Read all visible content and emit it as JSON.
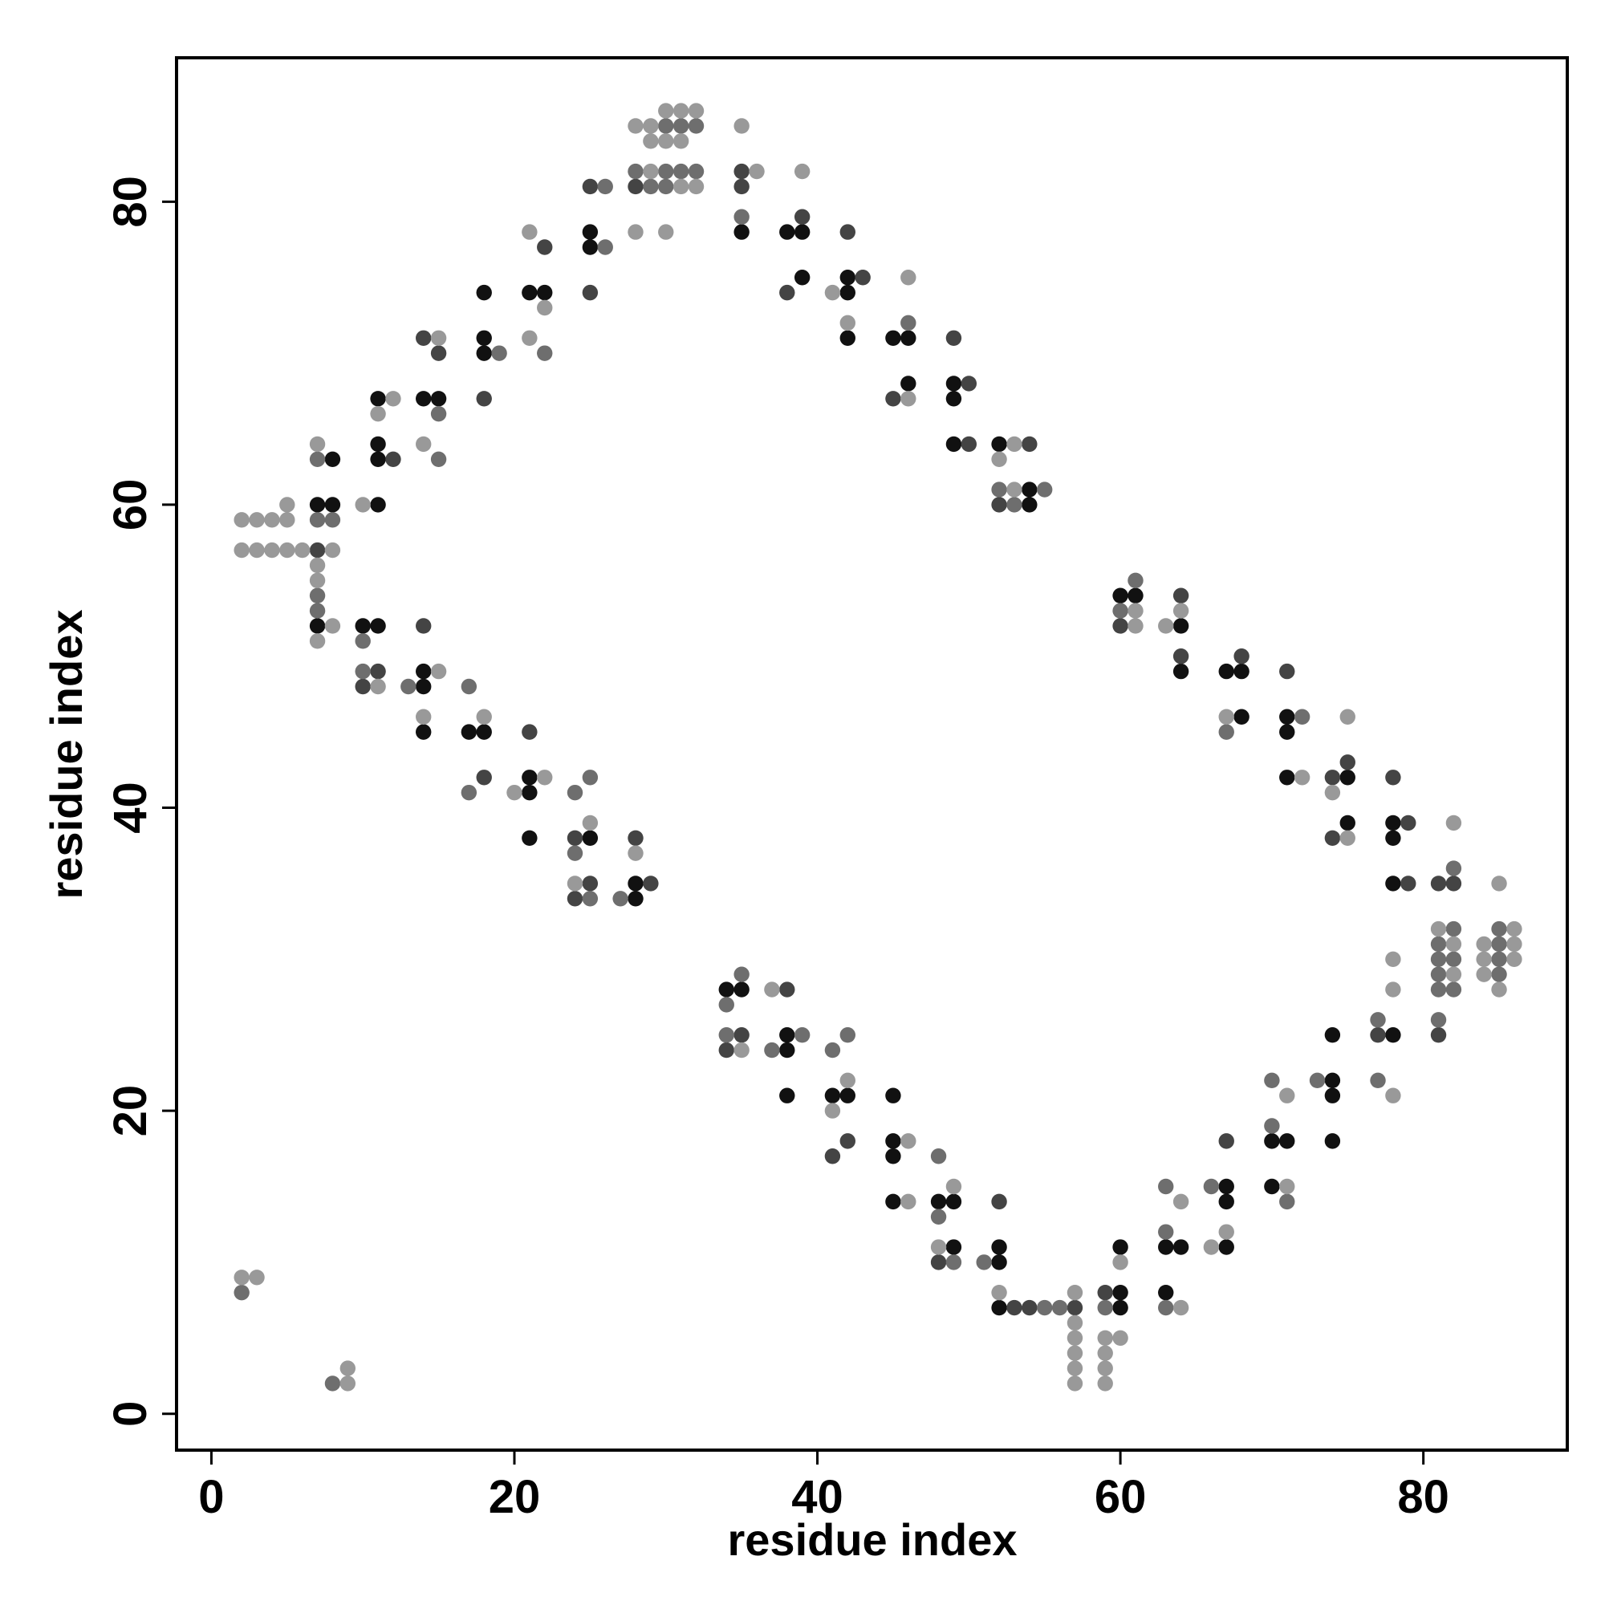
{
  "chart_data": {
    "type": "scatter",
    "xlabel": "residue index",
    "ylabel": "residue index",
    "xlim": [
      -2.3,
      89.5
    ],
    "ylim": [
      -2.4,
      89.5
    ],
    "xticks": [
      0,
      20,
      40,
      60,
      80
    ],
    "yticks": [
      0,
      20,
      40,
      60,
      80
    ],
    "grid": false,
    "series": [
      {
        "color": "#111111",
        "x": [
          7,
          7,
          8,
          8,
          10,
          11,
          11,
          11,
          11,
          11,
          14,
          14,
          14,
          14,
          15,
          17,
          18,
          18,
          18,
          18,
          21,
          21,
          21,
          21,
          22,
          25,
          25,
          25,
          28,
          28,
          34,
          35,
          35,
          38,
          38,
          38,
          38,
          39,
          39,
          41,
          42,
          42,
          42,
          42,
          45,
          45,
          45,
          45,
          45,
          46,
          46,
          48,
          49,
          49,
          49,
          49,
          49,
          52,
          52,
          52,
          52,
          54,
          54,
          60,
          60,
          60,
          60,
          61,
          63,
          63,
          64,
          64,
          64,
          67,
          67,
          67,
          67,
          68,
          68,
          70,
          70,
          71,
          71,
          71,
          71,
          74,
          74,
          74,
          74,
          75,
          75,
          78,
          78,
          78,
          78
        ],
        "values": [
          60,
          52,
          63,
          60,
          52,
          67,
          64,
          63,
          60,
          52,
          67,
          49,
          48,
          45,
          67,
          45,
          74,
          71,
          70,
          45,
          74,
          42,
          41,
          38,
          74,
          78,
          77,
          38,
          35,
          34,
          28,
          78,
          28,
          78,
          25,
          24,
          21,
          78,
          75,
          21,
          75,
          74,
          71,
          21,
          71,
          21,
          18,
          17,
          14,
          71,
          68,
          14,
          68,
          67,
          64,
          14,
          11,
          64,
          11,
          10,
          7,
          61,
          60,
          54,
          11,
          8,
          7,
          54,
          11,
          8,
          52,
          49,
          11,
          49,
          15,
          14,
          11,
          49,
          46,
          18,
          15,
          46,
          45,
          42,
          18,
          25,
          22,
          21,
          18,
          42,
          39,
          39,
          38,
          35,
          25
        ]
      },
      {
        "color": "#444444",
        "x": [
          7,
          10,
          11,
          12,
          14,
          14,
          15,
          18,
          18,
          21,
          22,
          24,
          24,
          25,
          25,
          25,
          28,
          28,
          29,
          34,
          35,
          35,
          35,
          38,
          38,
          39,
          41,
          42,
          42,
          43,
          45,
          48,
          49,
          50,
          50,
          52,
          52,
          53,
          54,
          54,
          57,
          59,
          60,
          64,
          64,
          67,
          68,
          71,
          74,
          74,
          75,
          77,
          78,
          79,
          79,
          81,
          81,
          82
        ],
        "values": [
          57,
          48,
          49,
          63,
          71,
          52,
          70,
          67,
          42,
          45,
          77,
          38,
          34,
          81,
          74,
          35,
          81,
          38,
          35,
          24,
          82,
          81,
          25,
          74,
          28,
          79,
          17,
          78,
          18,
          75,
          67,
          10,
          71,
          68,
          64,
          14,
          60,
          7,
          64,
          7,
          7,
          8,
          52,
          54,
          50,
          18,
          50,
          49,
          42,
          38,
          43,
          25,
          42,
          39,
          35,
          35,
          25,
          35
        ]
      },
      {
        "color": "#6e6e6e",
        "x": [
          2,
          7,
          7,
          7,
          7,
          8,
          8,
          10,
          10,
          13,
          15,
          15,
          17,
          17,
          19,
          22,
          24,
          24,
          25,
          25,
          26,
          26,
          27,
          28,
          29,
          30,
          30,
          30,
          31,
          31,
          32,
          32,
          34,
          34,
          35,
          35,
          37,
          39,
          41,
          42,
          46,
          48,
          48,
          49,
          51,
          52,
          53,
          55,
          55,
          56,
          59,
          60,
          61,
          63,
          63,
          63,
          66,
          67,
          70,
          70,
          71,
          72,
          73,
          77,
          77,
          81,
          81,
          81,
          81,
          81,
          82,
          82,
          82,
          82,
          85,
          85,
          85,
          85
        ],
        "values": [
          8,
          63,
          59,
          54,
          53,
          59,
          2,
          51,
          49,
          48,
          66,
          63,
          48,
          41,
          70,
          70,
          41,
          37,
          42,
          34,
          81,
          77,
          34,
          82,
          81,
          85,
          82,
          81,
          85,
          82,
          85,
          82,
          27,
          25,
          79,
          29,
          24,
          25,
          24,
          25,
          72,
          17,
          13,
          10,
          10,
          61,
          60,
          61,
          7,
          7,
          7,
          53,
          55,
          15,
          12,
          7,
          15,
          45,
          22,
          19,
          14,
          46,
          22,
          26,
          22,
          31,
          30,
          29,
          28,
          26,
          36,
          32,
          30,
          28,
          32,
          31,
          30,
          29
        ]
      },
      {
        "color": "#999999",
        "x": [
          2,
          3,
          4,
          5,
          5,
          2,
          3,
          4,
          5,
          6,
          8,
          7,
          7,
          7,
          7,
          8,
          10,
          11,
          11,
          12,
          14,
          14,
          15,
          15,
          18,
          20,
          21,
          21,
          22,
          22,
          24,
          25,
          28,
          28,
          28,
          29,
          29,
          29,
          30,
          30,
          30,
          31,
          31,
          31,
          32,
          32,
          35,
          35,
          36,
          37,
          39,
          41,
          41,
          42,
          42,
          46,
          46,
          46,
          46,
          48,
          49,
          52,
          52,
          53,
          53,
          57,
          57,
          57,
          57,
          57,
          57,
          59,
          59,
          59,
          59,
          60,
          60,
          61,
          61,
          63,
          64,
          64,
          64,
          66,
          67,
          67,
          71,
          71,
          72,
          74,
          75,
          75,
          78,
          78,
          78,
          81,
          82,
          82,
          82,
          84,
          84,
          84,
          85,
          85,
          86,
          86,
          86,
          2,
          3,
          9,
          9
        ],
        "values": [
          59,
          59,
          59,
          59,
          60,
          57,
          57,
          57,
          57,
          57,
          57,
          64,
          56,
          55,
          51,
          52,
          60,
          66,
          48,
          67,
          64,
          46,
          71,
          49,
          46,
          41,
          78,
          71,
          73,
          42,
          35,
          39,
          85,
          78,
          37,
          85,
          84,
          82,
          86,
          84,
          78,
          86,
          84,
          81,
          86,
          81,
          85,
          24,
          82,
          28,
          82,
          74,
          20,
          72,
          22,
          75,
          67,
          18,
          14,
          11,
          15,
          63,
          8,
          64,
          61,
          8,
          6,
          5,
          4,
          3,
          2,
          5,
          4,
          3,
          2,
          10,
          5,
          53,
          52,
          52,
          53,
          14,
          7,
          11,
          46,
          12,
          21,
          15,
          42,
          41,
          46,
          38,
          30,
          28,
          21,
          32,
          39,
          31,
          29,
          31,
          30,
          29,
          35,
          28,
          32,
          31,
          30,
          9,
          9,
          3,
          2
        ]
      }
    ]
  }
}
